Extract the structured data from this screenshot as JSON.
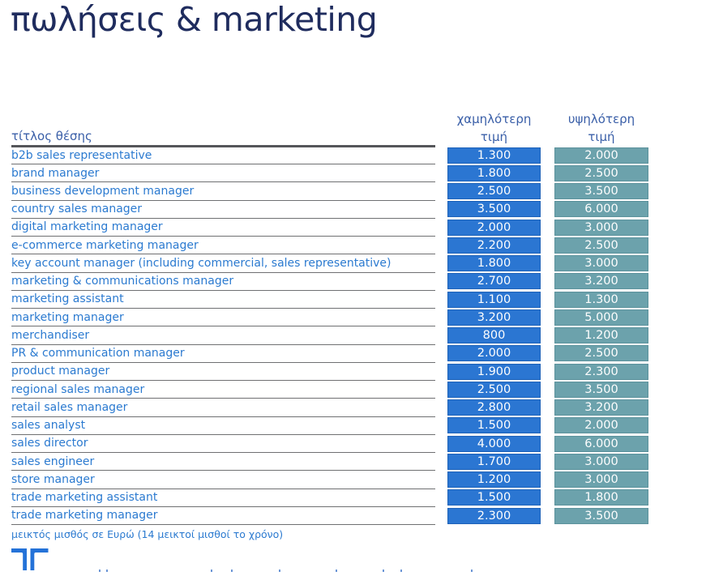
{
  "page": {
    "title": "πωλήσεις & marketing",
    "footnote": "μεικτός μισθός σε Ευρώ (14 μεικτοί μισθοί το χρόνο)"
  },
  "table": {
    "title_column_header": "τίτλος θέσης",
    "low_column_header": {
      "line1": "χαμηλότερη",
      "line2": "τιμή"
    },
    "high_column_header": {
      "line1": "υψηλότερη",
      "line2": "τιμή"
    },
    "rows": [
      {
        "title": "b2b sales representative",
        "low": "1.300",
        "high": "2.000"
      },
      {
        "title": "brand manager",
        "low": "1.800",
        "high": "2.500"
      },
      {
        "title": "business development manager",
        "low": "2.500",
        "high": "3.500"
      },
      {
        "title": "country sales manager",
        "low": "3.500",
        "high": "6.000"
      },
      {
        "title": "digital marketing manager",
        "low": "2.000",
        "high": "3.000"
      },
      {
        "title": "e-commerce marketing manager",
        "low": "2.200",
        "high": "2.500"
      },
      {
        "title": "key account manager (including commercial, sales representative)",
        "low": "1.800",
        "high": "3.000"
      },
      {
        "title": "marketing & communications manager",
        "low": "2.700",
        "high": "3.200"
      },
      {
        "title": "marketing assistant",
        "low": "1.100",
        "high": "1.300"
      },
      {
        "title": "marketing manager",
        "low": "3.200",
        "high": "5.000"
      },
      {
        "title": "merchandiser",
        "low": "800",
        "high": "1.200"
      },
      {
        "title": "PR & communication manager",
        "low": "2.000",
        "high": "2.500"
      },
      {
        "title": "product manager",
        "low": "1.900",
        "high": "2.300"
      },
      {
        "title": "regional sales manager",
        "low": "2.500",
        "high": "3.500"
      },
      {
        "title": "retail sales manager",
        "low": "2.800",
        "high": "3.200"
      },
      {
        "title": "sales analyst",
        "low": "1.500",
        "high": "2.000"
      },
      {
        "title": "sales director",
        "low": "4.000",
        "high": "6.000"
      },
      {
        "title": "sales engineer",
        "low": "1.700",
        "high": "3.000"
      },
      {
        "title": "store manager",
        "low": "1.200",
        "high": "3.000"
      },
      {
        "title": "trade marketing assistant",
        "low": "1.500",
        "high": "1.800"
      },
      {
        "title": "trade marketing manager",
        "low": "2.300",
        "high": "3.500"
      }
    ]
  },
  "colors": {
    "title_text": "#1F2C5E",
    "column_header_text": "#3A5FA8",
    "row_title_text": "#2B7AD0",
    "low_cell_background": "#2B76D2",
    "high_cell_background": "#6CA2AC",
    "separator_line": "#6F7072",
    "header_rule": "#55565A",
    "logo_blue": "#2472D8"
  },
  "icons": {
    "logo": "randstad-logo-icon"
  },
  "artifacts": {
    "cropped_text_marks_x": [
      122,
      131,
      260,
      285,
      344,
      414,
      472,
      494,
      581
    ]
  }
}
